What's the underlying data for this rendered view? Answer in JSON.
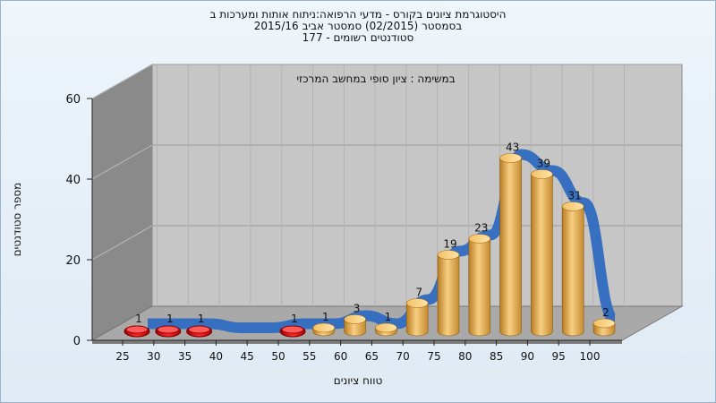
{
  "chart_data": {
    "type": "bar",
    "title_lines": [
      "היסטוגרמת ציונים בקורס - מדעי הרפואה:ניתוח אותות ומערכות ב",
      "בסמסטר  (02/2015)  סמסטר אביב 2015/16",
      "סטודנטים רשומים - 177"
    ],
    "subtitle": "במשימה : ציון סופי במחשב המרכזי",
    "xlabel": "טווח ציונים",
    "ylabel": "מספר סטודנטים",
    "categories": [
      "25",
      "30",
      "35",
      "40",
      "45",
      "50",
      "55",
      "60",
      "65",
      "70",
      "75",
      "80",
      "85",
      "90",
      "95",
      "100"
    ],
    "values": [
      1,
      1,
      1,
      0,
      0,
      1,
      1,
      3,
      1,
      7,
      19,
      23,
      43,
      39,
      31,
      2
    ],
    "bar_colors": [
      "red",
      "red",
      "red",
      "none",
      "none",
      "red",
      "gold",
      "gold",
      "gold",
      "gold",
      "gold",
      "gold",
      "gold",
      "gold",
      "gold",
      "gold"
    ],
    "yticks": [
      0,
      20,
      40,
      60
    ],
    "ylim": [
      0,
      60
    ],
    "grid": true,
    "trend_line": true,
    "colors": {
      "failing_bar": "#d21a1a",
      "passing_bar": "#e3a84a",
      "trend": "#2f6cc0",
      "back_wall": "#c6c6c6",
      "side_wall": "#8a8a8a"
    }
  }
}
